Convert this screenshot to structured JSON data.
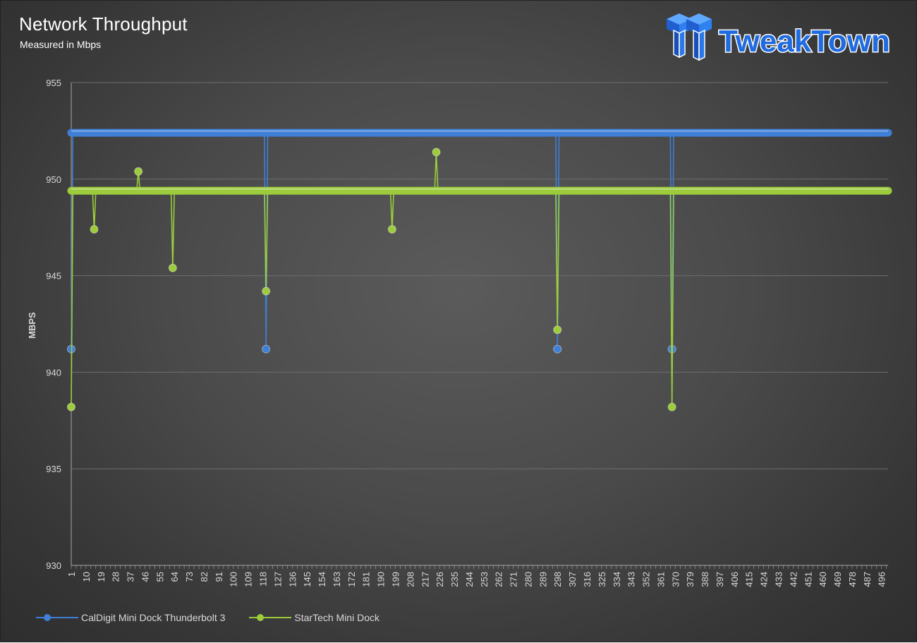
{
  "chart_data": {
    "type": "line",
    "title": "Network Throughput",
    "subtitle": "Measured in Mbps",
    "ylabel": "MBPS",
    "xlabel": "",
    "ylim": [
      930,
      955
    ],
    "yticks": [
      930,
      935,
      940,
      945,
      950,
      955
    ],
    "x_range": [
      1,
      500
    ],
    "xtick_labels": [
      "1",
      "10",
      "19",
      "28",
      "37",
      "46",
      "55",
      "64",
      "73",
      "82",
      "91",
      "100",
      "109",
      "118",
      "127",
      "136",
      "145",
      "154",
      "163",
      "172",
      "181",
      "190",
      "199",
      "208",
      "217",
      "226",
      "235",
      "244",
      "253",
      "262",
      "271",
      "280",
      "289",
      "298",
      "307",
      "316",
      "325",
      "334",
      "343",
      "352",
      "361",
      "370",
      "379",
      "388",
      "397",
      "406",
      "415",
      "424",
      "433",
      "442",
      "451",
      "460",
      "469",
      "478",
      "487",
      "496"
    ],
    "grid": true,
    "legend_position": "bottom-left",
    "series": [
      {
        "name": "CalDigit Mini Dock Thunderbolt 3",
        "color": "#3f7fd6",
        "baseline": 952.4,
        "spikes": [
          [
            1,
            941.2
          ],
          [
            120,
            941.2
          ],
          [
            298,
            941.2
          ],
          [
            368,
            941.2
          ]
        ]
      },
      {
        "name": "StarTech Mini Dock",
        "color": "#9ccc3c",
        "baseline": 949.4,
        "spikes": [
          [
            1,
            938.2
          ],
          [
            15,
            947.4
          ],
          [
            42,
            950.4
          ],
          [
            63,
            945.4
          ],
          [
            120,
            944.2
          ],
          [
            197,
            947.4
          ],
          [
            224,
            951.4
          ],
          [
            298,
            942.2
          ],
          [
            368,
            938.2
          ]
        ]
      }
    ]
  },
  "logo": {
    "text": "TweakTown"
  }
}
